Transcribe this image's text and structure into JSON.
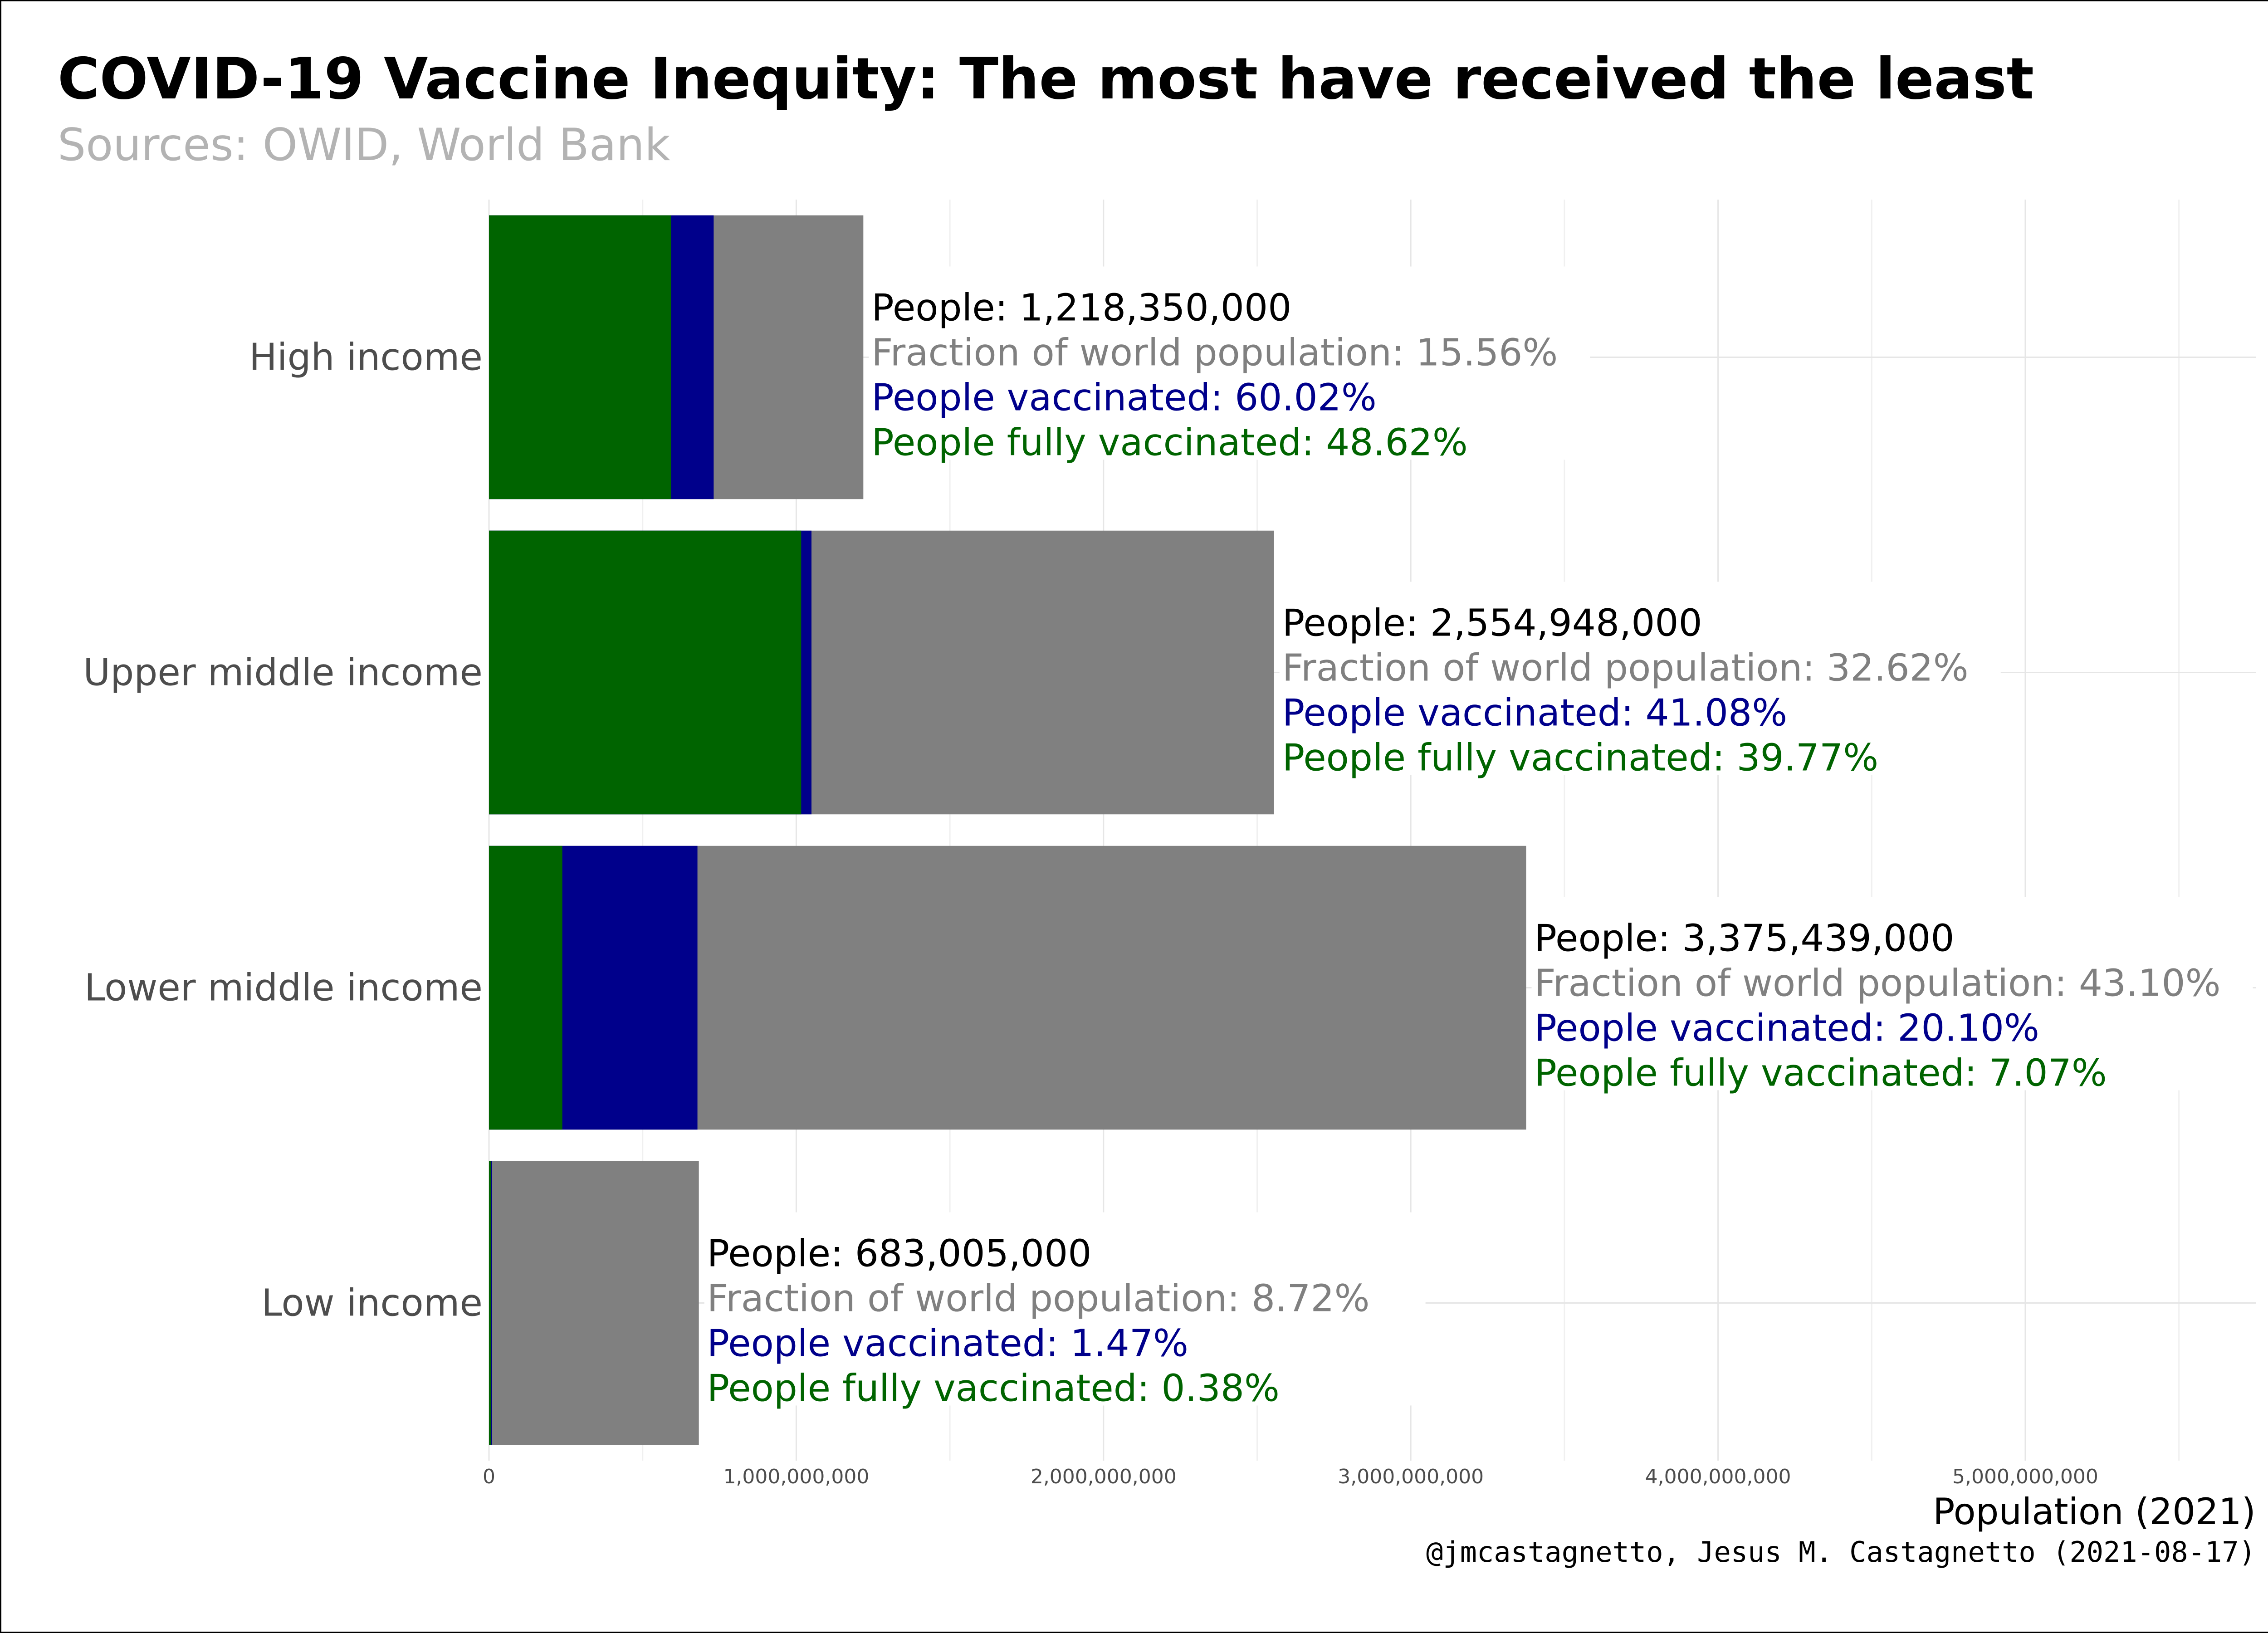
{
  "header": {
    "title": "COVID-19 Vaccine Inequity: The most have received the least",
    "subtitle": "Sources: OWID, World Bank"
  },
  "caption": "@jmcastagnetto, Jesus M. Castagnetto (2021-08-17)",
  "chart_data": {
    "type": "bar",
    "orientation": "horizontal",
    "stacked": true,
    "title": "COVID-19 Vaccine Inequity: The most have received the least",
    "subtitle": "Sources: OWID, World Bank",
    "xlabel": "Population (2021)",
    "ylabel": "",
    "xlim": [
      0,
      5750000000
    ],
    "x_ticks": [
      0,
      1000000000,
      2000000000,
      3000000000,
      4000000000,
      5000000000
    ],
    "x_tick_labels": [
      "0",
      "1,000,000,000",
      "2,000,000,000",
      "3,000,000,000",
      "4,000,000,000",
      "5,000,000,000"
    ],
    "grid": true,
    "legend": "none",
    "categories": [
      "High income",
      "Upper middle income",
      "Lower middle income",
      "Low income"
    ],
    "series": [
      {
        "values": [
          1218350000,
          2554948000,
          3375439000,
          683005000
        ],
        "color": "#808080"
      },
      {
        "values": [
          731253670,
          1049572638,
          678463239,
          10040174
        ],
        "color": "#00008b"
      },
      {
        "values": [
          592361770,
          1016102820,
          238643537,
          2595419
        ],
        "color": "#006400"
      }
    ],
    "annotations": [
      {
        "people": "People: 1,218,350,000",
        "fraction": "Fraction of world population: 15.56%",
        "vaccinated": "People vaccinated: 60.02%",
        "fully": "People fully vaccinated: 48.62%"
      },
      {
        "people": "People: 2,554,948,000",
        "fraction": "Fraction of world population: 32.62%",
        "vaccinated": "People vaccinated: 41.08%",
        "fully": "People fully vaccinated: 39.77%"
      },
      {
        "people": "People: 3,375,439,000",
        "fraction": "Fraction of world population: 43.10%",
        "vaccinated": "People vaccinated: 20.10%",
        "fully": "People fully vaccinated: 7.07%"
      },
      {
        "people": "People: 683,005,000",
        "fraction": "Fraction of world population: 8.72%",
        "vaccinated": "People vaccinated: 1.47%",
        "fully": "People fully vaccinated: 0.38%"
      }
    ],
    "annotation_colors": {
      "people": "#000000",
      "fraction": "#808080",
      "vaccinated": "#00008b",
      "fully": "#006400"
    }
  }
}
